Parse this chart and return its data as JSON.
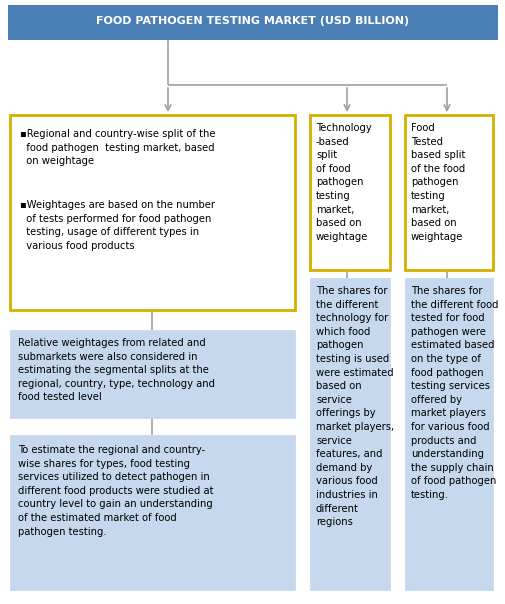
{
  "title": "FOOD PATHOGEN TESTING MARKET (USD BILLION)",
  "title_bg": "#4a7fb5",
  "title_fg": "#ffffff",
  "line_color": "#a0a0a0",
  "yellow_border": "#d4b000",
  "blue_bg": "#c5d8ed",
  "box1_line1": "▪Regional and country-wise split of the\n  food pathogen  testing market, based\n  on weightage",
  "box1_line2": "▪Weightages are based on the number\n  of tests performed for food pathogen\n  testing, usage of different types in\n  various food products",
  "box2_text": "Technology\n-based\nsplit\nof food\npathogen\ntesting\nmarket,\nbased on\nweightage",
  "box3_text": "Food\nTested\nbased split\nof the food\npathogen\ntesting\nmarket,\nbased on\nweightage",
  "box4_text": "Relative weightages from related and\nsubmarkets were also considered in\nestimating the segmental splits at the\nregional, country, type, technology and\nfood tested level",
  "box5_text": "To estimate the regional and country-\nwise shares for types, food testing\nservices utilized to detect pathogen in\ndifferent food products were studied at\ncountry level to gain an understanding\nof the estimated market of food\npathogen testing.",
  "box6_text": "The shares for\nthe different\ntechnology for\nwhich food\npathogen\ntesting is used\nwere estimated\nbased on\nservice\nofferings by\nmarket players,\nservice\nfeatures, and\ndemand by\nvarious food\nindustries in\ndifferent\nregions",
  "box7_text": "The shares for\nthe different food\ntested for food\npathogen were\nestimated based\non the type of\nfood pathogen\ntesting services\noffered by\nmarket players\nfor various food\nproducts and\nunderstanding\nthe supply chain\nof food pathogen\ntesting."
}
